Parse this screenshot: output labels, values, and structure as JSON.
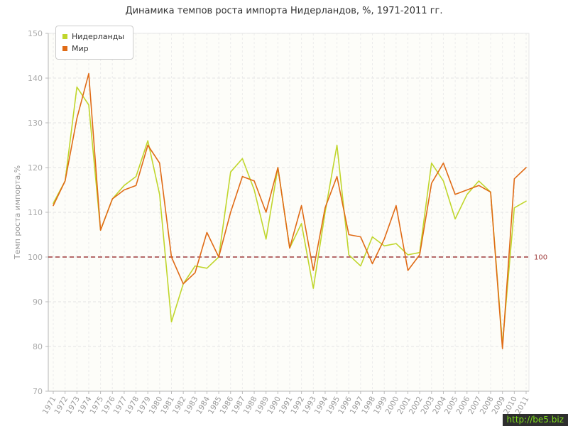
{
  "watermark": {
    "text": "http://be5.biz"
  },
  "chart_data": {
    "type": "line",
    "title": "Динамика темпов роста импорта Нидерландов, %, 1971-2011 гг.",
    "ylabel": "Темп роста импорта,%",
    "ylim": [
      70,
      150
    ],
    "y_tick_step": 10,
    "grid": true,
    "legend_position": "top-left",
    "reference_line": {
      "value": 100,
      "label": "100",
      "color": "#9e3a3a"
    },
    "x": [
      1971,
      1972,
      1973,
      1974,
      1975,
      1976,
      1977,
      1978,
      1979,
      1980,
      1981,
      1982,
      1983,
      1984,
      1985,
      1986,
      1987,
      1988,
      1989,
      1990,
      1991,
      1992,
      1993,
      1994,
      1995,
      1996,
      1997,
      1998,
      1999,
      2000,
      2001,
      2002,
      2003,
      2004,
      2005,
      2006,
      2007,
      2008,
      2009,
      2010,
      2011
    ],
    "series": [
      {
        "name": "Нидерланды",
        "color": "#c0d62c",
        "values": [
          112,
          117,
          138,
          134,
          106,
          113,
          116,
          118,
          126,
          114,
          85.5,
          94,
          98,
          97.5,
          100,
          119,
          122,
          115,
          104,
          120,
          102,
          107.5,
          93,
          110,
          125,
          100.5,
          98,
          104.5,
          102.5,
          103,
          100.5,
          101,
          121,
          117,
          108.5,
          114,
          117,
          114.5,
          80.5,
          111,
          112.5
        ]
      },
      {
        "name": "Мир",
        "color": "#e06b16",
        "values": [
          111.5,
          117,
          131,
          141,
          106,
          113,
          115,
          116,
          125,
          121,
          100,
          94,
          96.5,
          105.5,
          100,
          110,
          118,
          117,
          110,
          120,
          102,
          111.5,
          97,
          111,
          118,
          105,
          104.5,
          98.5,
          104,
          111.5,
          97,
          100.5,
          116.5,
          121,
          114,
          115,
          116,
          114.5,
          79.5,
          117.5,
          120
        ]
      }
    ]
  }
}
